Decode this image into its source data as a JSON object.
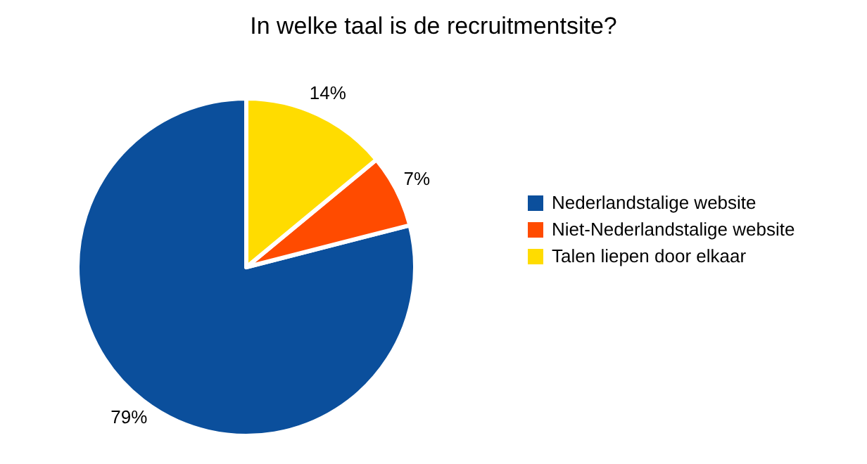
{
  "chart_data": {
    "type": "pie",
    "title": "In welke taal is de recruitmentsite?",
    "categories": [
      "Nederlandstalige website",
      "Niet-Nederlandstalige website",
      "Talen liepen door elkaar"
    ],
    "values": [
      79,
      7,
      14
    ],
    "colors": [
      "#0b4f9c",
      "#ff4b00",
      "#ffdc00"
    ],
    "value_labels": [
      "79%",
      "7%",
      "14%"
    ],
    "legend": "right"
  }
}
